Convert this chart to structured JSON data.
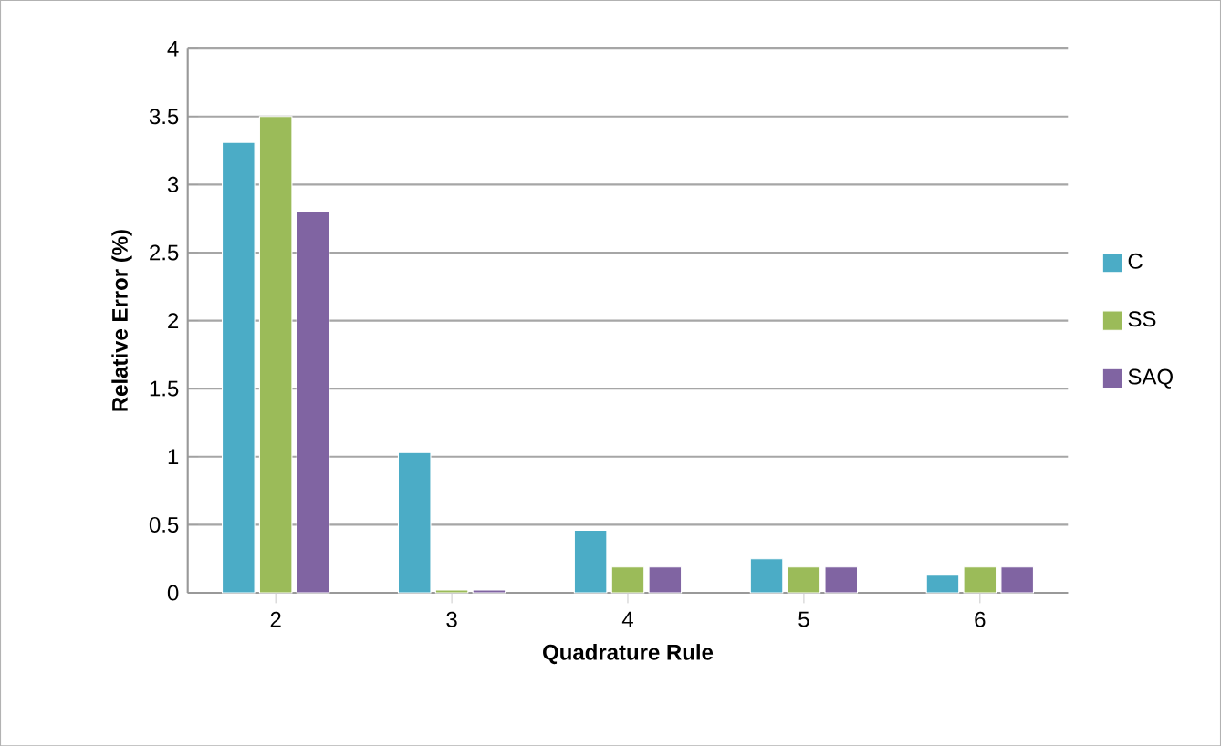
{
  "chart_data": {
    "type": "bar",
    "xlabel": "Quadrature Rule",
    "ylabel": "Relative Error (%)",
    "categories": [
      "2",
      "3",
      "4",
      "5",
      "6"
    ],
    "series": [
      {
        "name": "C",
        "color": "#4bacc6",
        "values": [
          3.31,
          1.03,
          0.46,
          0.25,
          0.13
        ]
      },
      {
        "name": "SS",
        "color": "#9bbb59",
        "values": [
          3.5,
          0.02,
          0.19,
          0.19,
          0.19
        ]
      },
      {
        "name": "SAQ",
        "color": "#8064a2",
        "values": [
          2.8,
          0.02,
          0.19,
          0.19,
          0.19
        ]
      }
    ],
    "ylim": [
      0,
      4
    ],
    "yticks": [
      0,
      0.5,
      1,
      1.5,
      2,
      2.5,
      3,
      3.5,
      4
    ],
    "grid": "y",
    "legend": "right"
  }
}
